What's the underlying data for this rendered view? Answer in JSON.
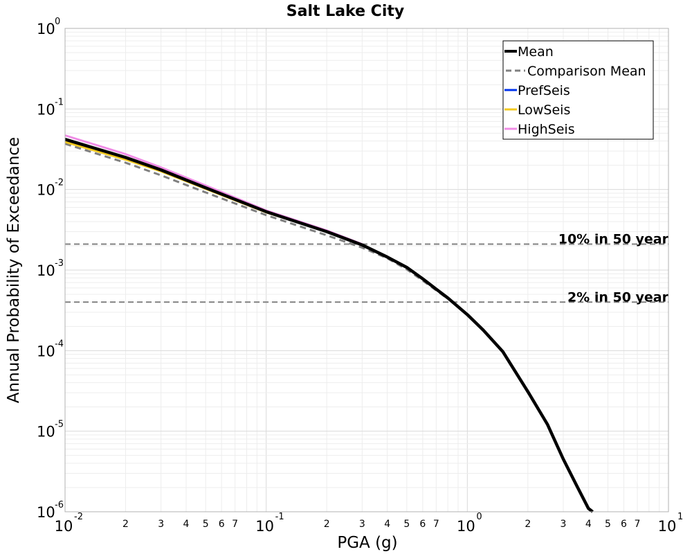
{
  "chart_data": {
    "type": "line",
    "title": "Salt Lake City",
    "xlabel": "PGA (g)",
    "ylabel": "Annual Probability of Exceedance",
    "xscale": "log",
    "yscale": "log",
    "xlim": [
      0.01,
      10
    ],
    "ylim": [
      1e-06,
      1
    ],
    "grid": true,
    "legend_position": "top-right",
    "x_major_ticks": [
      {
        "base": "10",
        "exp": "-2"
      },
      {
        "base": "10",
        "exp": "-1"
      },
      {
        "base": "10",
        "exp": "0"
      },
      {
        "base": "10",
        "exp": "1"
      }
    ],
    "y_major_ticks": [
      {
        "base": "10",
        "exp": "0"
      },
      {
        "base": "10",
        "exp": "-1"
      },
      {
        "base": "10",
        "exp": "-2"
      },
      {
        "base": "10",
        "exp": "-3"
      },
      {
        "base": "10",
        "exp": "-4"
      },
      {
        "base": "10",
        "exp": "-5"
      },
      {
        "base": "10",
        "exp": "-6"
      }
    ],
    "x_minor_tick_labels": [
      "2",
      "3",
      "4",
      "5",
      "6",
      "7"
    ],
    "reference_lines": [
      {
        "label": "10% in 50 year",
        "y": 0.0021
      },
      {
        "label": "2% in 50 year",
        "y": 0.0004
      }
    ],
    "series": [
      {
        "name": "Mean",
        "color": "#000000",
        "style": "solid",
        "x": [
          0.01,
          0.02,
          0.03,
          0.05,
          0.1,
          0.2,
          0.3,
          0.4,
          0.5,
          0.6,
          0.7,
          0.8,
          1.0,
          1.2,
          1.5,
          2.0,
          2.5,
          3.0,
          3.5,
          4.0,
          4.2
        ],
        "y": [
          0.042,
          0.025,
          0.0175,
          0.0105,
          0.0053,
          0.003,
          0.00205,
          0.00145,
          0.00108,
          0.00078,
          0.00058,
          0.00045,
          0.00028,
          0.00018,
          9.75e-05,
          3.1e-05,
          1.22e-05,
          4.5e-06,
          2.1e-06,
          1.1e-06,
          1e-06
        ]
      },
      {
        "name": "Comparison Mean",
        "color": "#808080",
        "style": "dashed",
        "x": [
          0.01,
          0.02,
          0.03,
          0.05,
          0.1,
          0.2,
          0.3,
          0.4,
          0.5,
          0.6,
          0.7,
          0.8
        ],
        "y": [
          0.037,
          0.0215,
          0.015,
          0.0092,
          0.0048,
          0.0027,
          0.0019,
          0.0014,
          0.00102,
          0.00074,
          0.00056,
          0.00044
        ]
      },
      {
        "name": "PrefSeis",
        "color": "#0033ee",
        "style": "solid",
        "x": [
          0.01,
          0.02,
          0.03,
          0.05,
          0.1,
          0.2,
          0.3
        ],
        "y": [
          0.042,
          0.025,
          0.0175,
          0.0105,
          0.0053,
          0.003,
          0.00205
        ]
      },
      {
        "name": "LowSeis",
        "color": "#f2c81e",
        "style": "solid",
        "x": [
          0.01,
          0.02,
          0.03,
          0.05,
          0.1,
          0.2,
          0.3
        ],
        "y": [
          0.039,
          0.0235,
          0.0168,
          0.0102,
          0.0052,
          0.003,
          0.00205
        ]
      },
      {
        "name": "HighSeis",
        "color": "#f08ce6",
        "style": "solid",
        "x": [
          0.01,
          0.02,
          0.03,
          0.05,
          0.1,
          0.2,
          0.3
        ],
        "y": [
          0.047,
          0.0275,
          0.0188,
          0.0112,
          0.0055,
          0.0031,
          0.0021
        ]
      }
    ]
  }
}
